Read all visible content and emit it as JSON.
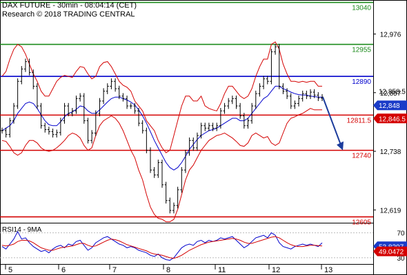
{
  "header": {
    "title": "DAX FUTURE - 30min - 08:04:14 (CET)",
    "source": "Research © 2018 TRADING CENTRAL"
  },
  "colors": {
    "resistance": "#1a8a1a",
    "pivot": "#0000cc",
    "support": "#d40000",
    "price": "#000000",
    "upper_band": "#d40000",
    "ma_line": "#0000cc",
    "forecast_arrow": "#1c3c9c",
    "rsi_line": "#0000cc",
    "rsi_ma": "#d40000",
    "current_price_bg": "#1a3cc8",
    "rsi_value_bg": "#1a3cc8",
    "rsi_ma_bg": "#d40000"
  },
  "chart_data": [
    {
      "type": "line",
      "panel": "price",
      "x_tick_labels": [
        "5",
        "6",
        "7",
        "8",
        "11",
        "12",
        "13"
      ],
      "y_tick_labels": [
        "12,976",
        "12,857",
        "12,738",
        "12,619"
      ],
      "ylim": [
        12593,
        13045
      ],
      "levels": [
        {
          "label": "13040",
          "value": 13040,
          "kind": "resistance"
        },
        {
          "label": "12955",
          "value": 12955,
          "kind": "resistance"
        },
        {
          "label": "12890",
          "value": 12890,
          "kind": "pivot"
        },
        {
          "label": "12811.5",
          "value": 12811.5,
          "kind": "support"
        },
        {
          "label": "12740",
          "value": 12740,
          "kind": "support"
        },
        {
          "label": "12605",
          "value": 12605,
          "kind": "support"
        }
      ],
      "price_labels": [
        {
          "label": "12,858.5",
          "value": 12858.5,
          "style": "plain"
        },
        {
          "label": "12,848",
          "value": 12848,
          "style": "current"
        },
        {
          "label": "12,846.5",
          "value": 12846.5,
          "style": "ma"
        }
      ],
      "series": [
        {
          "kind": "price",
          "values": [
            12780,
            12772,
            12800,
            12830,
            12880,
            12905,
            12920,
            12898,
            12870,
            12830,
            12790,
            12782,
            12778,
            12772,
            12776,
            12800,
            12830,
            12815,
            12820,
            12845,
            12850,
            12800,
            12760,
            12775,
            12815,
            12840,
            12860,
            12870,
            12880,
            12865,
            12850,
            12845,
            12830,
            12830,
            12820,
            12795,
            12780,
            12740,
            12700,
            12690,
            12715,
            12670,
            12638,
            12618,
            12628,
            12660,
            12700,
            12735,
            12760,
            12745,
            12770,
            12790,
            12785,
            12790,
            12785,
            12790,
            12820,
            12830,
            12840,
            12845,
            12830,
            12810,
            12790,
            12800,
            12830,
            12855,
            12870,
            12885,
            12880,
            12940,
            12950,
            12870,
            12860,
            12850,
            12830,
            12835,
            12845,
            12855,
            12850,
            12858,
            12852,
            12846,
            12848
          ]
        },
        {
          "kind": "upper_band",
          "values": [
            12890,
            12900,
            12925,
            12945,
            12955,
            12950,
            12935,
            12915,
            12895,
            12880,
            12860,
            12850,
            12850,
            12865,
            12880,
            12888,
            12892,
            12890,
            12888,
            12900,
            12910,
            12908,
            12895,
            12885,
            12890,
            12910,
            12918,
            12920,
            12910,
            12895,
            12880,
            12872,
            12868,
            12860,
            12840,
            12830,
            12820,
            12800,
            12790,
            12780,
            12760,
            12745,
            12735,
            12740,
            12770,
            12800,
            12830,
            12850,
            12850,
            12840,
            12840,
            12850,
            12830,
            12825,
            12822,
            12820,
            12835,
            12855,
            12870,
            12870,
            12860,
            12850,
            12845,
            12850,
            12865,
            12890,
            12910,
            12925,
            12925,
            12955,
            12960,
            12945,
            12915,
            12895,
            12880,
            12880,
            12878,
            12880,
            12878,
            12880,
            12880,
            12870,
            12870
          ]
        },
        {
          "kind": "lower_band",
          "values": [
            12760,
            12758,
            12748,
            12735,
            12730,
            12735,
            12750,
            12760,
            12760,
            12755,
            12745,
            12740,
            12738,
            12740,
            12745,
            12752,
            12760,
            12770,
            12775,
            12772,
            12765,
            12750,
            12740,
            12745,
            12770,
            12790,
            12800,
            12805,
            12810,
            12805,
            12795,
            12780,
            12760,
            12740,
            12725,
            12700,
            12680,
            12650,
            12625,
            12610,
            12602,
            12600,
            12595,
            12595,
            12600,
            12620,
            12650,
            12680,
            12700,
            12710,
            12725,
            12740,
            12750,
            12760,
            12765,
            12770,
            12772,
            12775,
            12770,
            12765,
            12758,
            12750,
            12748,
            12755,
            12770,
            12775,
            12770,
            12765,
            12768,
            12755,
            12750,
            12755,
            12775,
            12795,
            12805,
            12808,
            12812,
            12815,
            12820,
            12825,
            12822,
            12822,
            12822
          ]
        },
        {
          "kind": "moving_average",
          "values": [
            12780,
            12785,
            12790,
            12800,
            12815,
            12825,
            12835,
            12838,
            12835,
            12825,
            12812,
            12800,
            12792,
            12790,
            12790,
            12798,
            12808,
            12815,
            12818,
            12823,
            12830,
            12828,
            12820,
            12815,
            12815,
            12822,
            12830,
            12838,
            12845,
            12848,
            12848,
            12845,
            12842,
            12838,
            12832,
            12822,
            12810,
            12795,
            12778,
            12760,
            12745,
            12730,
            12715,
            12705,
            12700,
            12705,
            12715,
            12728,
            12742,
            12752,
            12762,
            12770,
            12775,
            12780,
            12782,
            12785,
            12790,
            12795,
            12800,
            12805,
            12805,
            12800,
            12800,
            12805,
            12815,
            12825,
            12835,
            12845,
            12850,
            12860,
            12870,
            12870,
            12865,
            12862,
            12858,
            12855,
            12853,
            12852,
            12852,
            12850,
            12849,
            12848,
            12848
          ]
        }
      ],
      "forecast": {
        "from_value": 12848,
        "to_value": 12740
      }
    },
    {
      "type": "line",
      "panel": "indicator",
      "title": "RSI14 - 9MA",
      "y_tick_labels": [
        "70",
        "30"
      ],
      "ylim": [
        20,
        85
      ],
      "value_labels": [
        {
          "label": "53.8207",
          "value": 53.8207,
          "style": "rsi"
        },
        {
          "label": "49.0472",
          "value": 49.0472,
          "style": "ma"
        }
      ],
      "series": [
        {
          "kind": "rsi",
          "values": [
            48,
            44,
            52,
            60,
            72,
            60,
            62,
            54,
            48,
            44,
            40,
            42,
            38,
            44,
            48,
            50,
            46,
            52,
            50,
            56,
            58,
            50,
            42,
            46,
            54,
            58,
            62,
            64,
            60,
            56,
            52,
            50,
            46,
            48,
            46,
            42,
            40,
            38,
            34,
            32,
            36,
            30,
            27,
            26,
            30,
            38,
            46,
            50,
            52,
            50,
            56,
            58,
            54,
            58,
            56,
            58,
            62,
            60,
            62,
            64,
            58,
            52,
            46,
            50,
            56,
            62,
            64,
            66,
            62,
            70,
            66,
            54,
            48,
            46,
            44,
            48,
            50,
            52,
            50,
            52,
            50,
            48,
            53.8
          ]
        },
        {
          "kind": "rsi_ma",
          "values": [
            50,
            49,
            50,
            52,
            56,
            58,
            58,
            57,
            54,
            50,
            46,
            44,
            42,
            42,
            44,
            46,
            47,
            48,
            49,
            51,
            53,
            53,
            50,
            48,
            49,
            52,
            55,
            58,
            60,
            59,
            57,
            54,
            51,
            49,
            47,
            45,
            43,
            41,
            38,
            36,
            35,
            34,
            32,
            30,
            29,
            31,
            34,
            38,
            42,
            45,
            48,
            51,
            53,
            55,
            56,
            57,
            58,
            59,
            60,
            61,
            60,
            58,
            55,
            53,
            53,
            55,
            57,
            59,
            61,
            63,
            64,
            62,
            58,
            54,
            51,
            49,
            48,
            48,
            49,
            50,
            50,
            49.5,
            49.0
          ]
        }
      ]
    }
  ]
}
